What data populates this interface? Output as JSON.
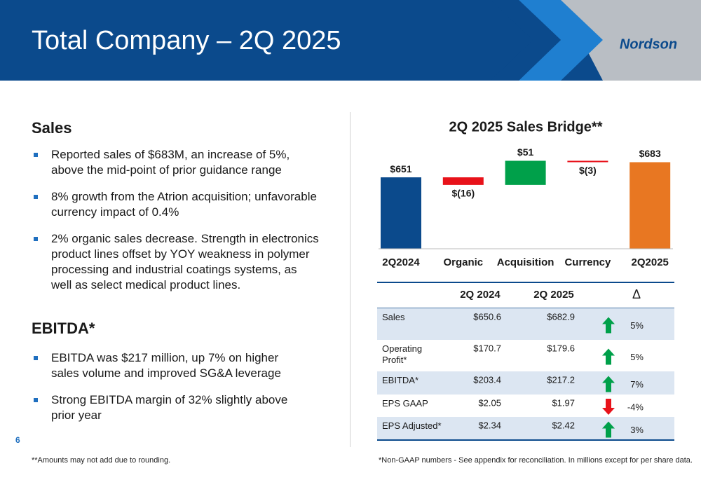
{
  "header": {
    "title": "Total Company – 2Q 2025",
    "logo": "Nordson"
  },
  "sales": {
    "heading": "Sales",
    "bullets": [
      "Reported sales of $683M, an increase of 5%, above the mid-point of prior guidance range",
      "8% growth from the Atrion acquisition; unfavorable currency impact of 0.4%",
      "2% organic sales decrease. Strength in electronics product lines offset by YOY weakness in polymer processing and industrial coatings systems, as well as select medical product lines."
    ]
  },
  "ebitda": {
    "heading": "EBITDA*",
    "bullets": [
      "EBITDA was $217 million, up 7% on higher sales volume and improved SG&A leverage",
      "Strong EBITDA margin of 32% slightly above prior year"
    ]
  },
  "chart_data": {
    "type": "waterfall",
    "title": "2Q 2025 Sales Bridge**",
    "categories": [
      "2Q2024",
      "Organic",
      "Acquisition",
      "Currency",
      "2Q2025"
    ],
    "values": [
      651,
      -16,
      51,
      -3,
      683
    ],
    "value_labels": [
      "$651",
      "$(16)",
      "$51",
      "$(3)",
      "$683"
    ],
    "is_total": [
      true,
      false,
      false,
      false,
      true
    ],
    "colors": [
      "#0b4a8c",
      "#e8121a",
      "#00a04a",
      "#e8121a",
      "#e87722"
    ],
    "ylim": [
      500,
      700
    ]
  },
  "table": {
    "columns": [
      "2Q 2024",
      "2Q 2025",
      "Δ"
    ],
    "rows": [
      {
        "label": "Sales",
        "v2024": "$650.6",
        "v2025": "$682.9",
        "direction": "up",
        "change": "5%"
      },
      {
        "label": "Operating Profit*",
        "v2024": "$170.7",
        "v2025": "$179.6",
        "direction": "up",
        "change": "5%"
      },
      {
        "label": "EBITDA*",
        "v2024": "$203.4",
        "v2025": "$217.2",
        "direction": "up",
        "change": "7%"
      },
      {
        "label": "EPS GAAP",
        "v2024": "$2.05",
        "v2025": "$1.97",
        "direction": "down",
        "change": "-4%"
      },
      {
        "label": "EPS Adjusted*",
        "v2024": "$2.34",
        "v2025": "$2.42",
        "direction": "up",
        "change": "3%"
      }
    ]
  },
  "footer": {
    "page": "6",
    "left_note": "**Amounts may not add due to rounding.",
    "right_note": "*Non-GAAP numbers - See appendix for reconciliation. In millions except for per share data."
  }
}
